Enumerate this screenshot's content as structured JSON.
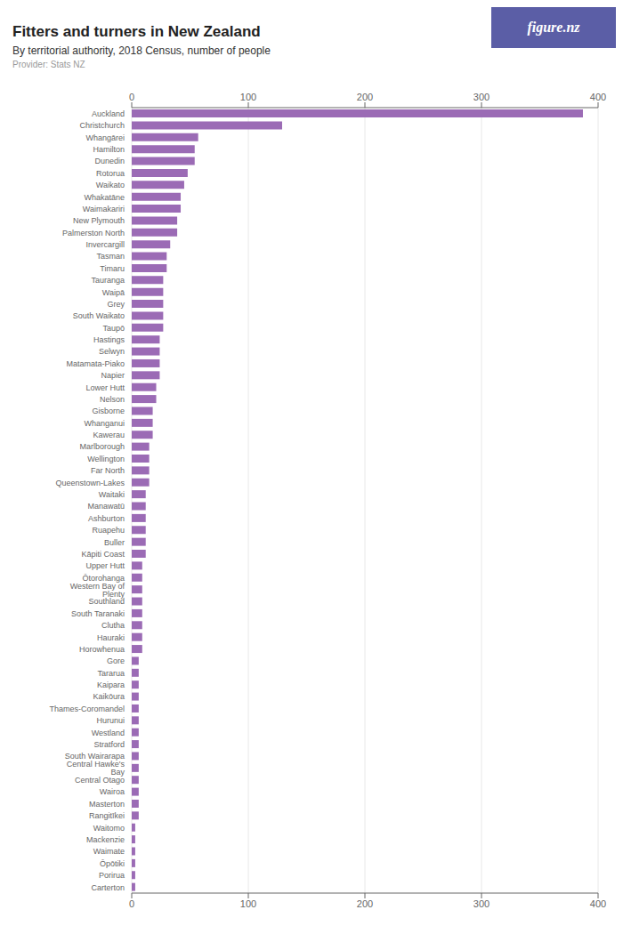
{
  "chart_data": {
    "type": "bar",
    "orientation": "horizontal",
    "title": "Fitters and turners in New Zealand",
    "subtitle": "By territorial authority, 2018 Census, number of people",
    "annotations": [
      "Provider: Stats NZ",
      "figure.nz"
    ],
    "color": "#9B6BB5",
    "grid": true,
    "xlim": [
      0,
      400
    ],
    "xticks": [
      0,
      100,
      200,
      300,
      400
    ],
    "categories": [
      "Auckland",
      "Christchurch",
      "Whangārei",
      "Hamilton",
      "Dunedin",
      "Rotorua",
      "Waikato",
      "Whakatāne",
      "Waimakariri",
      "New Plymouth",
      "Palmerston North",
      "Invercargill",
      "Tasman",
      "Timaru",
      "Tauranga",
      "Waipā",
      "Grey",
      "South Waikato",
      "Taupō",
      "Hastings",
      "Selwyn",
      "Matamata-Piako",
      "Napier",
      "Lower Hutt",
      "Nelson",
      "Gisborne",
      "Whanganui",
      "Kawerau",
      "Marlborough",
      "Wellington",
      "Far North",
      "Queenstown-Lakes",
      "Waitaki",
      "Manawatū",
      "Ashburton",
      "Ruapehu",
      "Buller",
      "Kāpiti Coast",
      "Upper Hutt",
      "Ōtorohanga",
      "Western Bay of Plenty",
      "Southland",
      "South Taranaki",
      "Clutha",
      "Hauraki",
      "Horowhenua",
      "Gore",
      "Tararua",
      "Kaipara",
      "Kaikōura",
      "Thames-Coromandel",
      "Hurunui",
      "Westland",
      "Stratford",
      "South Wairarapa",
      "Central Hawke's Bay",
      "Central Otago",
      "Wairoa",
      "Masterton",
      "Rangitīkei",
      "Waitomo",
      "Mackenzie",
      "Waimate",
      "Ōpōtiki",
      "Porirua",
      "Carterton"
    ],
    "values": [
      387,
      129,
      57,
      54,
      54,
      48,
      45,
      42,
      42,
      39,
      39,
      33,
      30,
      30,
      27,
      27,
      27,
      27,
      27,
      24,
      24,
      24,
      24,
      21,
      21,
      18,
      18,
      18,
      15,
      15,
      15,
      15,
      12,
      12,
      12,
      12,
      12,
      12,
      9,
      9,
      9,
      9,
      9,
      9,
      9,
      9,
      6,
      6,
      6,
      6,
      6,
      6,
      6,
      6,
      6,
      6,
      6,
      6,
      6,
      6,
      3,
      3,
      3,
      3,
      3,
      3
    ]
  }
}
